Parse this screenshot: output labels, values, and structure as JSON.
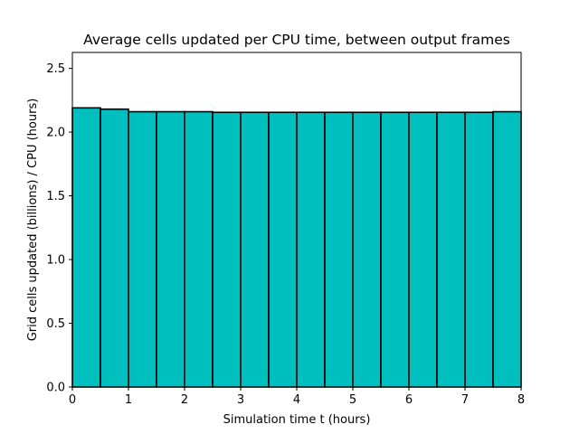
{
  "chart_data": {
    "type": "bar",
    "title": "Average cells updated per CPU time, between output frames",
    "xlabel": "Simulation time t (hours)",
    "ylabel": "Grid cells updated (billions) / CPU (hours)",
    "xlim": [
      0,
      8
    ],
    "ylim": [
      0,
      2.625
    ],
    "xticks": [
      "0",
      "1",
      "2",
      "3",
      "4",
      "5",
      "6",
      "7",
      "8"
    ],
    "yticks": [
      "0.0",
      "0.5",
      "1.0",
      "1.5",
      "2.0",
      "2.5"
    ],
    "bar_width": 0.5,
    "bar_color": "#00bfbf",
    "edge_color": "#000000",
    "bins": [
      {
        "x0": 0.0,
        "x1": 0.5,
        "value": 2.19
      },
      {
        "x0": 0.5,
        "x1": 1.0,
        "value": 2.18
      },
      {
        "x0": 1.0,
        "x1": 1.5,
        "value": 2.16
      },
      {
        "x0": 1.5,
        "x1": 2.0,
        "value": 2.16
      },
      {
        "x0": 2.0,
        "x1": 2.5,
        "value": 2.16
      },
      {
        "x0": 2.5,
        "x1": 3.0,
        "value": 2.155
      },
      {
        "x0": 3.0,
        "x1": 3.5,
        "value": 2.155
      },
      {
        "x0": 3.5,
        "x1": 4.0,
        "value": 2.155
      },
      {
        "x0": 4.0,
        "x1": 4.5,
        "value": 2.155
      },
      {
        "x0": 4.5,
        "x1": 5.0,
        "value": 2.155
      },
      {
        "x0": 5.0,
        "x1": 5.5,
        "value": 2.155
      },
      {
        "x0": 5.5,
        "x1": 6.0,
        "value": 2.155
      },
      {
        "x0": 6.0,
        "x1": 6.5,
        "value": 2.155
      },
      {
        "x0": 6.5,
        "x1": 7.0,
        "value": 2.155
      },
      {
        "x0": 7.0,
        "x1": 7.5,
        "value": 2.155
      },
      {
        "x0": 7.5,
        "x1": 8.0,
        "value": 2.16
      }
    ],
    "grid": false,
    "legend": "none"
  }
}
